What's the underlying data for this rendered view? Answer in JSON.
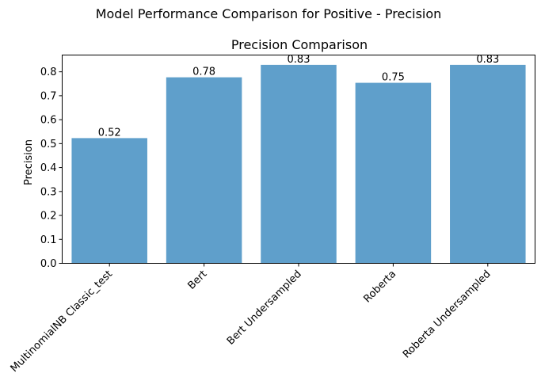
{
  "suptitle": "Model Performance Comparison for Positive - Precision",
  "chart_data": {
    "type": "bar",
    "title": "Precision Comparison",
    "xlabel": "",
    "ylabel": "Precision",
    "categories": [
      "MultinomialNB Classic_test",
      "Bert",
      "Bert Undersampled",
      "Roberta",
      "Roberta Undersampled"
    ],
    "values": [
      0.523,
      0.777,
      0.829,
      0.754,
      0.829
    ],
    "value_labels": [
      "0.52",
      "0.78",
      "0.83",
      "0.75",
      "0.83"
    ],
    "ylim": [
      0,
      0.87
    ],
    "yticks": [
      0.0,
      0.1,
      0.2,
      0.3,
      0.4,
      0.5,
      0.6,
      0.7,
      0.8
    ],
    "ytick_labels": [
      "0.0",
      "0.1",
      "0.2",
      "0.3",
      "0.4",
      "0.5",
      "0.6",
      "0.7",
      "0.8"
    ],
    "bar_color": "#5f9fcb",
    "grid": false,
    "legend": "none"
  }
}
